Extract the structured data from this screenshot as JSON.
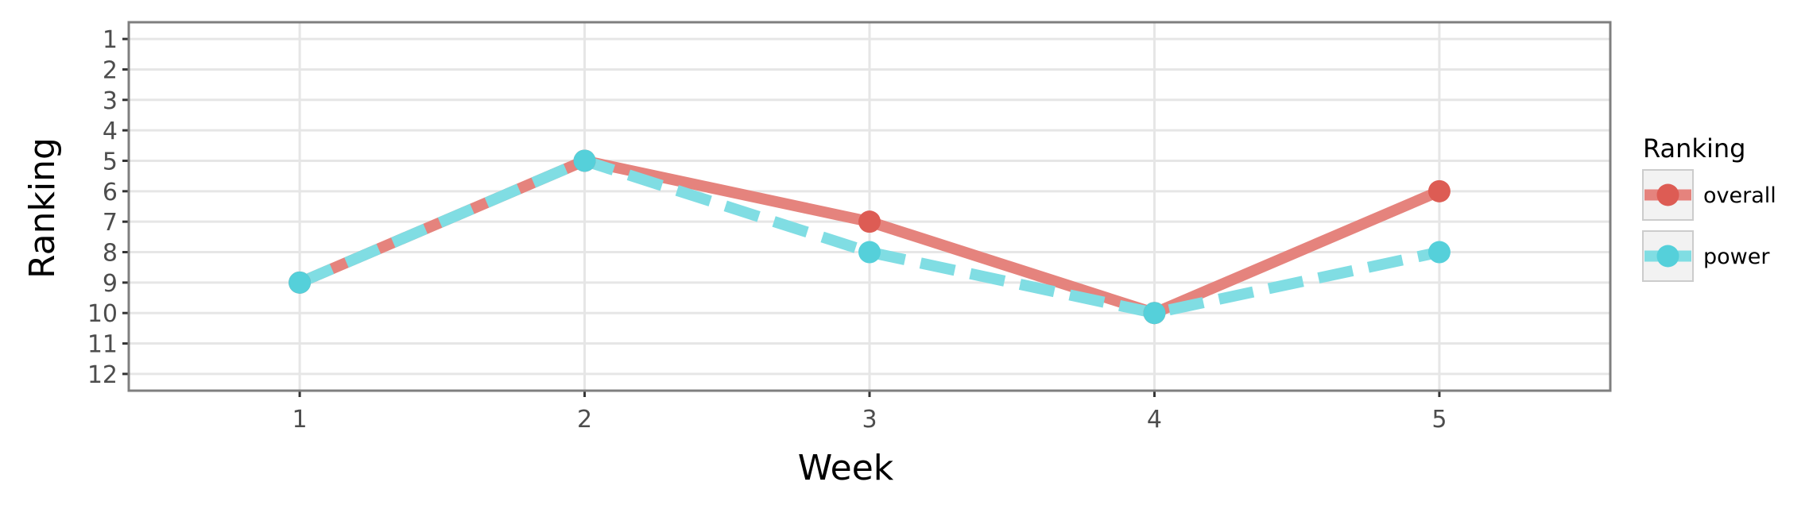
{
  "chart_data": {
    "type": "line",
    "title": "",
    "xlabel": "Week",
    "ylabel": "Ranking",
    "x": [
      1,
      2,
      3,
      4,
      5
    ],
    "xlim": [
      0.4,
      5.6
    ],
    "ylim": [
      12.55,
      0.45
    ],
    "y_reversed": true,
    "xticks": [
      "1",
      "2",
      "3",
      "4",
      "5"
    ],
    "yticks": [
      "1",
      "2",
      "3",
      "4",
      "5",
      "6",
      "7",
      "8",
      "9",
      "10",
      "11",
      "12"
    ],
    "grid": true,
    "legend": {
      "title": "Ranking",
      "position": "right"
    },
    "series": [
      {
        "name": "overall",
        "values": [
          9,
          5,
          7,
          10,
          6
        ],
        "color": "#e5837d",
        "point_color": "#dd5c54",
        "line_style": "solid"
      },
      {
        "name": "power",
        "values": [
          9,
          5,
          8,
          10,
          8
        ],
        "color": "#80dde3",
        "point_color": "#55d0da",
        "line_style": "dashed"
      }
    ]
  }
}
